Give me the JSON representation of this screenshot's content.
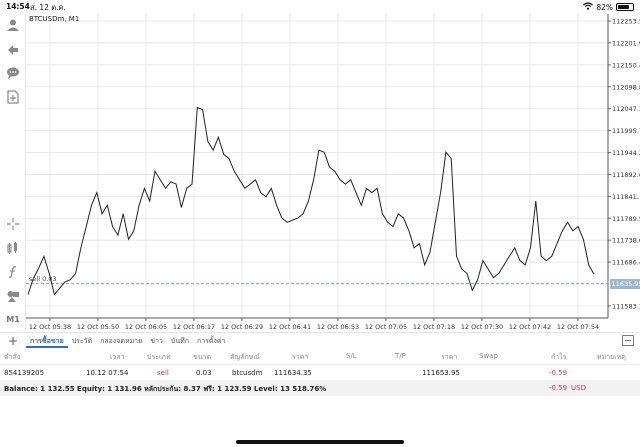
{
  "status_bar": {
    "time": "14:54",
    "date": "ส. 12 ต.ค.",
    "battery": "82%",
    "battery_level": 0.82,
    "wifi_icon": "wifi-icon"
  },
  "toolbar": {
    "icons": [
      "person-icon",
      "trade-arrows-icon",
      "chat-icon",
      "add-document-icon",
      "crosshair-icon",
      "indicators-icon",
      "function-icon",
      "objects-icon"
    ],
    "timeframe": "M1"
  },
  "chart": {
    "symbol_label": "BTCUSDm, M1",
    "order_label": "sell 0.03",
    "current_price_tag": "111635.95",
    "colors": {
      "line": "#222222",
      "grid": "#e8e8e8",
      "order_line": "#7aa6c2",
      "price_tag": "#9eb7cc"
    }
  },
  "chart_data": {
    "type": "line",
    "series": [
      {
        "values": [
          111610,
          111648,
          111672,
          111700,
          111660,
          111610,
          111625,
          111640,
          111645,
          111660,
          111720,
          111770,
          111820,
          111850,
          111800,
          111820,
          111770,
          111750,
          111800,
          111740,
          111760,
          111820,
          111860,
          111830,
          111900,
          111880,
          111860,
          111875,
          111870,
          111815,
          111860,
          111870,
          112050,
          112045,
          111970,
          111950,
          111980,
          111940,
          111930,
          111900,
          111880,
          111860,
          111870,
          111880,
          111850,
          111840,
          111860,
          111820,
          111790,
          111780,
          111785,
          111790,
          111800,
          111830,
          111880,
          111950,
          111945,
          111910,
          111900,
          111880,
          111870,
          111880,
          111850,
          111820,
          111860,
          111850,
          111860,
          111800,
          111780,
          111770,
          111800,
          111790,
          111760,
          111720,
          111730,
          111680,
          111710,
          111780,
          111850,
          111945,
          111930,
          111700,
          111670,
          111660,
          111620,
          111645,
          111690,
          111670,
          111650,
          111660,
          111680,
          111700,
          111720,
          111690,
          111680,
          111720,
          111830,
          111700,
          111690,
          111700,
          111730,
          111760,
          111780,
          111760,
          111770,
          111740,
          111680,
          111658
        ]
      }
    ],
    "y_ticks": [
      "112253.50",
      "112201.95",
      "112150.40",
      "112098.85",
      "112047.30",
      "111995.75",
      "111944.20",
      "111892.65",
      "111841.10",
      "111789.55",
      "111738.00",
      "111686.45",
      "111583.35"
    ],
    "y_tick_values": [
      112253.5,
      112201.95,
      112150.4,
      112098.85,
      112047.3,
      111995.75,
      111944.2,
      111892.65,
      111841.1,
      111789.55,
      111738.0,
      111686.45,
      111583.35
    ],
    "ylim": [
      111555,
      112270
    ],
    "x_ticks": [
      "12 Oct 05:38",
      "12 Oct 05:50",
      "12 Oct 06:05",
      "12 Oct 06:17",
      "12 Oct 06:29",
      "12 Oct 06:41",
      "12 Oct 06:53",
      "12 Oct 07:05",
      "12 Oct 07:18",
      "12 Oct 07:30",
      "12 Oct 07:42",
      "12 Oct 07:54"
    ],
    "order_price": 111635.95,
    "grid": true
  },
  "tabs": {
    "items": [
      "การซื้อขาย",
      "ประวัติ",
      "กล่องจดหมาย",
      "ข่าว",
      "บันทึก",
      "การตั้งค่า"
    ],
    "active": "การซื้อขาย"
  },
  "table": {
    "headers": [
      "คำสั่ง",
      "เวลา",
      "ประเภท",
      "ขนาด",
      "สัญลักษณ์",
      "ราคา",
      "S/L",
      "T/P",
      "ราคา",
      "Swap",
      "กำไร",
      "หมายเหตุ"
    ],
    "row": [
      "854139205",
      "10.12 07:54",
      "sell",
      "0.03",
      "btcusdm",
      "111634.35",
      "",
      "",
      "111653.95",
      "",
      "-0.59",
      ""
    ]
  },
  "balance": {
    "text": "Balance: 1 132.55 Equity: 1 131.96 หลักประกัน: 8.37 ฟรี: 1 123.59 Level: 13 518.76%",
    "profit": "-0.59",
    "currency": "USD"
  }
}
